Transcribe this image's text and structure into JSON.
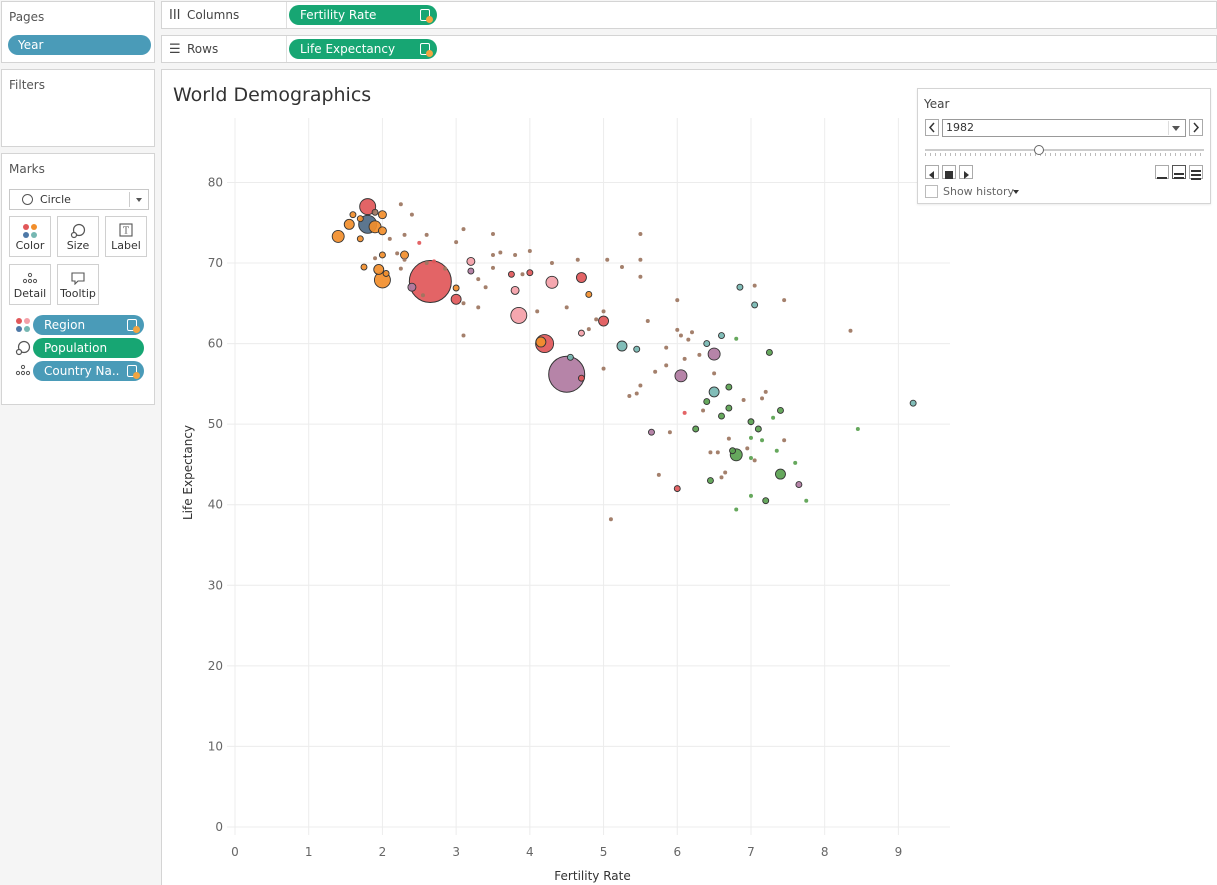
{
  "pages": {
    "title": "Pages",
    "pill": "Year"
  },
  "filters": {
    "title": "Filters"
  },
  "marks": {
    "title": "Marks",
    "mark_type": "Circle",
    "buttons": [
      {
        "label": "Color",
        "icon": "color-dots-icon"
      },
      {
        "label": "Size",
        "icon": "size-shape-icon"
      },
      {
        "label": "Label",
        "icon": "label-t-icon"
      },
      {
        "label": "Detail",
        "icon": "detail-dots-icon"
      },
      {
        "label": "Tooltip",
        "icon": "tooltip-bubble-icon"
      }
    ],
    "fields": [
      {
        "label": "Region",
        "encoding": "color"
      },
      {
        "label": "Population",
        "encoding": "size"
      },
      {
        "label": "Country Na..",
        "encoding": "detail"
      }
    ]
  },
  "shelves": {
    "columns": {
      "label": "Columns",
      "pill": "Fertility Rate"
    },
    "rows": {
      "label": "Rows",
      "pill": "Life Expectancy"
    }
  },
  "viz": {
    "title": "World Demographics"
  },
  "year_control": {
    "title": "Year",
    "value": "1982",
    "slider_fraction": 0.41,
    "show_history": "Show history"
  },
  "colors": {
    "pill_blue": "#4a9bb8",
    "pill_green": "#17a673",
    "europe": "#e0dcdb",
    "orange": "#f28e2b",
    "red": "#e15759",
    "pink": "#f4a0a8",
    "purple": "#b07aa1",
    "teal": "#76b7b2",
    "green": "#59a14f",
    "slate": "#4e6a85",
    "brown": "#9c755f"
  },
  "chart_data": {
    "type": "scatter",
    "xlabel": "Fertility Rate",
    "ylabel": "Life Expectancy",
    "xlim": [
      0,
      9.7
    ],
    "ylim": [
      0,
      88
    ],
    "xticks": [
      0,
      1,
      2,
      3,
      4,
      5,
      6,
      7,
      8,
      9
    ],
    "yticks": [
      0,
      10,
      20,
      30,
      40,
      50,
      60,
      70,
      80
    ],
    "grid": true,
    "points": [
      {
        "x": 1.8,
        "y": 77.0,
        "r": 8,
        "c": "red"
      },
      {
        "x": 1.6,
        "y": 76.0,
        "r": 3,
        "c": "orange"
      },
      {
        "x": 1.9,
        "y": 76.3,
        "r": 3,
        "c": "brown"
      },
      {
        "x": 2.0,
        "y": 76.0,
        "r": 4,
        "c": "orange"
      },
      {
        "x": 1.7,
        "y": 75.5,
        "r": 3,
        "c": "orange"
      },
      {
        "x": 1.8,
        "y": 74.8,
        "r": 9,
        "c": "slate"
      },
      {
        "x": 1.9,
        "y": 74.5,
        "r": 6,
        "c": "orange"
      },
      {
        "x": 1.55,
        "y": 74.8,
        "r": 5,
        "c": "orange"
      },
      {
        "x": 1.4,
        "y": 73.3,
        "r": 6,
        "c": "orange"
      },
      {
        "x": 1.7,
        "y": 73.0,
        "r": 3,
        "c": "orange"
      },
      {
        "x": 2.0,
        "y": 74.0,
        "r": 4,
        "c": "orange"
      },
      {
        "x": 2.1,
        "y": 73.0,
        "r": 2,
        "c": "brown"
      },
      {
        "x": 2.3,
        "y": 73.5,
        "r": 2,
        "c": "brown"
      },
      {
        "x": 2.25,
        "y": 77.3,
        "r": 2,
        "c": "brown"
      },
      {
        "x": 2.4,
        "y": 76.0,
        "r": 2,
        "c": "brown"
      },
      {
        "x": 2.5,
        "y": 72.5,
        "r": 2,
        "c": "red"
      },
      {
        "x": 2.6,
        "y": 73.5,
        "r": 2,
        "c": "brown"
      },
      {
        "x": 2.3,
        "y": 71.0,
        "r": 4,
        "c": "orange"
      },
      {
        "x": 2.2,
        "y": 71.2,
        "r": 2,
        "c": "brown"
      },
      {
        "x": 2.0,
        "y": 71.0,
        "r": 3,
        "c": "orange"
      },
      {
        "x": 1.9,
        "y": 70.6,
        "r": 2,
        "c": "brown"
      },
      {
        "x": 1.95,
        "y": 69.2,
        "r": 5,
        "c": "orange"
      },
      {
        "x": 1.75,
        "y": 69.5,
        "r": 3,
        "c": "orange"
      },
      {
        "x": 2.05,
        "y": 68.7,
        "r": 3,
        "c": "orange"
      },
      {
        "x": 2.0,
        "y": 67.9,
        "r": 8,
        "c": "orange"
      },
      {
        "x": 2.25,
        "y": 69.3,
        "r": 2,
        "c": "brown"
      },
      {
        "x": 2.3,
        "y": 70.4,
        "r": 2,
        "c": "brown"
      },
      {
        "x": 2.6,
        "y": 70.0,
        "r": 2,
        "c": "brown"
      },
      {
        "x": 2.7,
        "y": 70.2,
        "r": 2,
        "c": "red"
      },
      {
        "x": 2.4,
        "y": 67.0,
        "r": 4,
        "c": "purple"
      },
      {
        "x": 2.65,
        "y": 67.7,
        "r": 21,
        "c": "red"
      },
      {
        "x": 2.55,
        "y": 66.0,
        "r": 2,
        "c": "brown"
      },
      {
        "x": 2.85,
        "y": 69.3,
        "r": 2,
        "c": "brown"
      },
      {
        "x": 3.0,
        "y": 66.9,
        "r": 3,
        "c": "orange"
      },
      {
        "x": 3.0,
        "y": 65.5,
        "r": 5,
        "c": "red"
      },
      {
        "x": 3.1,
        "y": 65.0,
        "r": 2,
        "c": "brown"
      },
      {
        "x": 3.1,
        "y": 61.0,
        "r": 2,
        "c": "brown"
      },
      {
        "x": 3.1,
        "y": 74.2,
        "r": 2,
        "c": "brown"
      },
      {
        "x": 3.0,
        "y": 72.6,
        "r": 2,
        "c": "brown"
      },
      {
        "x": 3.2,
        "y": 70.2,
        "r": 4,
        "c": "pink"
      },
      {
        "x": 3.2,
        "y": 69.0,
        "r": 3,
        "c": "purple"
      },
      {
        "x": 3.3,
        "y": 68.0,
        "r": 2,
        "c": "brown"
      },
      {
        "x": 3.4,
        "y": 67.0,
        "r": 2,
        "c": "brown"
      },
      {
        "x": 3.3,
        "y": 64.5,
        "r": 2,
        "c": "brown"
      },
      {
        "x": 3.5,
        "y": 69.4,
        "r": 2,
        "c": "brown"
      },
      {
        "x": 3.5,
        "y": 71.0,
        "r": 2,
        "c": "brown"
      },
      {
        "x": 3.5,
        "y": 73.6,
        "r": 2,
        "c": "brown"
      },
      {
        "x": 3.6,
        "y": 71.3,
        "r": 2,
        "c": "brown"
      },
      {
        "x": 3.75,
        "y": 68.6,
        "r": 3,
        "c": "red"
      },
      {
        "x": 3.8,
        "y": 66.6,
        "r": 4,
        "c": "pink"
      },
      {
        "x": 3.85,
        "y": 63.5,
        "r": 8,
        "c": "pink"
      },
      {
        "x": 3.9,
        "y": 68.6,
        "r": 2,
        "c": "brown"
      },
      {
        "x": 3.8,
        "y": 71.0,
        "r": 2,
        "c": "brown"
      },
      {
        "x": 4.0,
        "y": 71.5,
        "r": 2,
        "c": "brown"
      },
      {
        "x": 4.0,
        "y": 68.8,
        "r": 3,
        "c": "red"
      },
      {
        "x": 4.1,
        "y": 64.0,
        "r": 2,
        "c": "brown"
      },
      {
        "x": 4.2,
        "y": 60.0,
        "r": 9,
        "c": "red"
      },
      {
        "x": 4.15,
        "y": 60.2,
        "r": 5,
        "c": "orange"
      },
      {
        "x": 4.3,
        "y": 70.0,
        "r": 2,
        "c": "brown"
      },
      {
        "x": 4.3,
        "y": 67.6,
        "r": 6,
        "c": "pink"
      },
      {
        "x": 4.5,
        "y": 64.5,
        "r": 2,
        "c": "brown"
      },
      {
        "x": 4.5,
        "y": 56.2,
        "r": 18,
        "c": "purple"
      },
      {
        "x": 4.55,
        "y": 58.3,
        "r": 3,
        "c": "teal"
      },
      {
        "x": 4.7,
        "y": 55.7,
        "r": 3,
        "c": "red"
      },
      {
        "x": 4.7,
        "y": 68.2,
        "r": 5,
        "c": "red"
      },
      {
        "x": 4.7,
        "y": 61.3,
        "r": 3,
        "c": "pink"
      },
      {
        "x": 4.65,
        "y": 70.4,
        "r": 2,
        "c": "brown"
      },
      {
        "x": 4.8,
        "y": 66.1,
        "r": 3,
        "c": "orange"
      },
      {
        "x": 4.8,
        "y": 61.8,
        "r": 2,
        "c": "brown"
      },
      {
        "x": 4.9,
        "y": 63.0,
        "r": 2,
        "c": "brown"
      },
      {
        "x": 5.0,
        "y": 62.8,
        "r": 5,
        "c": "red"
      },
      {
        "x": 5.0,
        "y": 64.0,
        "r": 2,
        "c": "brown"
      },
      {
        "x": 5.0,
        "y": 56.9,
        "r": 2,
        "c": "brown"
      },
      {
        "x": 5.05,
        "y": 70.4,
        "r": 2,
        "c": "brown"
      },
      {
        "x": 5.1,
        "y": 38.2,
        "r": 2,
        "c": "brown"
      },
      {
        "x": 5.25,
        "y": 69.5,
        "r": 2,
        "c": "brown"
      },
      {
        "x": 5.25,
        "y": 59.7,
        "r": 5,
        "c": "teal"
      },
      {
        "x": 5.35,
        "y": 53.5,
        "r": 2,
        "c": "brown"
      },
      {
        "x": 5.45,
        "y": 59.3,
        "r": 3,
        "c": "teal"
      },
      {
        "x": 5.45,
        "y": 53.8,
        "r": 2,
        "c": "brown"
      },
      {
        "x": 5.5,
        "y": 54.8,
        "r": 2,
        "c": "brown"
      },
      {
        "x": 5.5,
        "y": 70.4,
        "r": 2,
        "c": "brown"
      },
      {
        "x": 5.5,
        "y": 73.6,
        "r": 2,
        "c": "brown"
      },
      {
        "x": 5.5,
        "y": 68.3,
        "r": 2,
        "c": "brown"
      },
      {
        "x": 5.6,
        "y": 62.8,
        "r": 2,
        "c": "brown"
      },
      {
        "x": 5.65,
        "y": 49.0,
        "r": 3,
        "c": "purple"
      },
      {
        "x": 5.7,
        "y": 56.5,
        "r": 2,
        "c": "brown"
      },
      {
        "x": 5.75,
        "y": 43.7,
        "r": 2,
        "c": "brown"
      },
      {
        "x": 5.85,
        "y": 59.5,
        "r": 2,
        "c": "brown"
      },
      {
        "x": 5.85,
        "y": 57.3,
        "r": 2,
        "c": "brown"
      },
      {
        "x": 5.9,
        "y": 49.0,
        "r": 2,
        "c": "brown"
      },
      {
        "x": 6.0,
        "y": 42.0,
        "r": 3,
        "c": "red"
      },
      {
        "x": 6.0,
        "y": 65.4,
        "r": 2,
        "c": "brown"
      },
      {
        "x": 6.0,
        "y": 61.7,
        "r": 2,
        "c": "brown"
      },
      {
        "x": 6.05,
        "y": 56.0,
        "r": 6,
        "c": "purple"
      },
      {
        "x": 6.05,
        "y": 61.0,
        "r": 2,
        "c": "brown"
      },
      {
        "x": 6.1,
        "y": 58.1,
        "r": 2,
        "c": "brown"
      },
      {
        "x": 6.1,
        "y": 51.4,
        "r": 2,
        "c": "red"
      },
      {
        "x": 6.15,
        "y": 60.5,
        "r": 2,
        "c": "brown"
      },
      {
        "x": 6.2,
        "y": 61.4,
        "r": 2,
        "c": "brown"
      },
      {
        "x": 6.25,
        "y": 49.4,
        "r": 3,
        "c": "green"
      },
      {
        "x": 6.3,
        "y": 58.6,
        "r": 2,
        "c": "brown"
      },
      {
        "x": 6.35,
        "y": 51.7,
        "r": 2,
        "c": "brown"
      },
      {
        "x": 6.4,
        "y": 60.0,
        "r": 3,
        "c": "teal"
      },
      {
        "x": 6.4,
        "y": 52.8,
        "r": 3,
        "c": "green"
      },
      {
        "x": 6.45,
        "y": 46.5,
        "r": 2,
        "c": "brown"
      },
      {
        "x": 6.45,
        "y": 43.0,
        "r": 3,
        "c": "green"
      },
      {
        "x": 6.5,
        "y": 58.7,
        "r": 6,
        "c": "purple"
      },
      {
        "x": 6.5,
        "y": 54.0,
        "r": 5,
        "c": "teal"
      },
      {
        "x": 6.5,
        "y": 56.3,
        "r": 2,
        "c": "brown"
      },
      {
        "x": 6.55,
        "y": 46.5,
        "r": 2,
        "c": "brown"
      },
      {
        "x": 6.6,
        "y": 61.0,
        "r": 3,
        "c": "teal"
      },
      {
        "x": 6.6,
        "y": 51.0,
        "r": 3,
        "c": "green"
      },
      {
        "x": 6.6,
        "y": 43.4,
        "r": 2,
        "c": "brown"
      },
      {
        "x": 6.65,
        "y": 44.0,
        "r": 2,
        "c": "brown"
      },
      {
        "x": 6.7,
        "y": 54.6,
        "r": 3,
        "c": "green"
      },
      {
        "x": 6.7,
        "y": 52.0,
        "r": 3,
        "c": "green"
      },
      {
        "x": 6.7,
        "y": 48.2,
        "r": 2,
        "c": "brown"
      },
      {
        "x": 6.75,
        "y": 46.7,
        "r": 3,
        "c": "green"
      },
      {
        "x": 6.8,
        "y": 46.2,
        "r": 6,
        "c": "green"
      },
      {
        "x": 6.8,
        "y": 39.4,
        "r": 2,
        "c": "green"
      },
      {
        "x": 6.8,
        "y": 60.6,
        "r": 2,
        "c": "green"
      },
      {
        "x": 6.85,
        "y": 67.0,
        "r": 3,
        "c": "teal"
      },
      {
        "x": 6.9,
        "y": 53.0,
        "r": 2,
        "c": "brown"
      },
      {
        "x": 6.95,
        "y": 47.0,
        "r": 2,
        "c": "brown"
      },
      {
        "x": 7.0,
        "y": 50.3,
        "r": 3,
        "c": "green"
      },
      {
        "x": 7.0,
        "y": 48.3,
        "r": 2,
        "c": "green"
      },
      {
        "x": 7.0,
        "y": 45.8,
        "r": 2,
        "c": "green"
      },
      {
        "x": 7.0,
        "y": 41.1,
        "r": 2,
        "c": "green"
      },
      {
        "x": 7.05,
        "y": 64.8,
        "r": 3,
        "c": "teal"
      },
      {
        "x": 7.05,
        "y": 45.5,
        "r": 2,
        "c": "brown"
      },
      {
        "x": 7.1,
        "y": 49.4,
        "r": 3,
        "c": "green"
      },
      {
        "x": 7.05,
        "y": 67.2,
        "r": 2,
        "c": "brown"
      },
      {
        "x": 7.15,
        "y": 53.2,
        "r": 2,
        "c": "brown"
      },
      {
        "x": 7.15,
        "y": 48.0,
        "r": 2,
        "c": "green"
      },
      {
        "x": 7.2,
        "y": 54.0,
        "r": 2,
        "c": "brown"
      },
      {
        "x": 7.2,
        "y": 40.5,
        "r": 3,
        "c": "green"
      },
      {
        "x": 7.25,
        "y": 58.9,
        "r": 3,
        "c": "green"
      },
      {
        "x": 7.3,
        "y": 50.8,
        "r": 2,
        "c": "green"
      },
      {
        "x": 7.35,
        "y": 46.7,
        "r": 2,
        "c": "green"
      },
      {
        "x": 7.4,
        "y": 43.8,
        "r": 5,
        "c": "green"
      },
      {
        "x": 7.4,
        "y": 51.7,
        "r": 3,
        "c": "green"
      },
      {
        "x": 7.45,
        "y": 65.4,
        "r": 2,
        "c": "brown"
      },
      {
        "x": 7.45,
        "y": 48.0,
        "r": 2,
        "c": "brown"
      },
      {
        "x": 7.6,
        "y": 45.2,
        "r": 2,
        "c": "green"
      },
      {
        "x": 7.65,
        "y": 42.5,
        "r": 3,
        "c": "purple"
      },
      {
        "x": 7.75,
        "y": 40.5,
        "r": 2,
        "c": "green"
      },
      {
        "x": 8.35,
        "y": 61.6,
        "r": 2,
        "c": "brown"
      },
      {
        "x": 8.45,
        "y": 49.4,
        "r": 2,
        "c": "green"
      },
      {
        "x": 9.2,
        "y": 52.6,
        "r": 3,
        "c": "teal"
      }
    ]
  }
}
